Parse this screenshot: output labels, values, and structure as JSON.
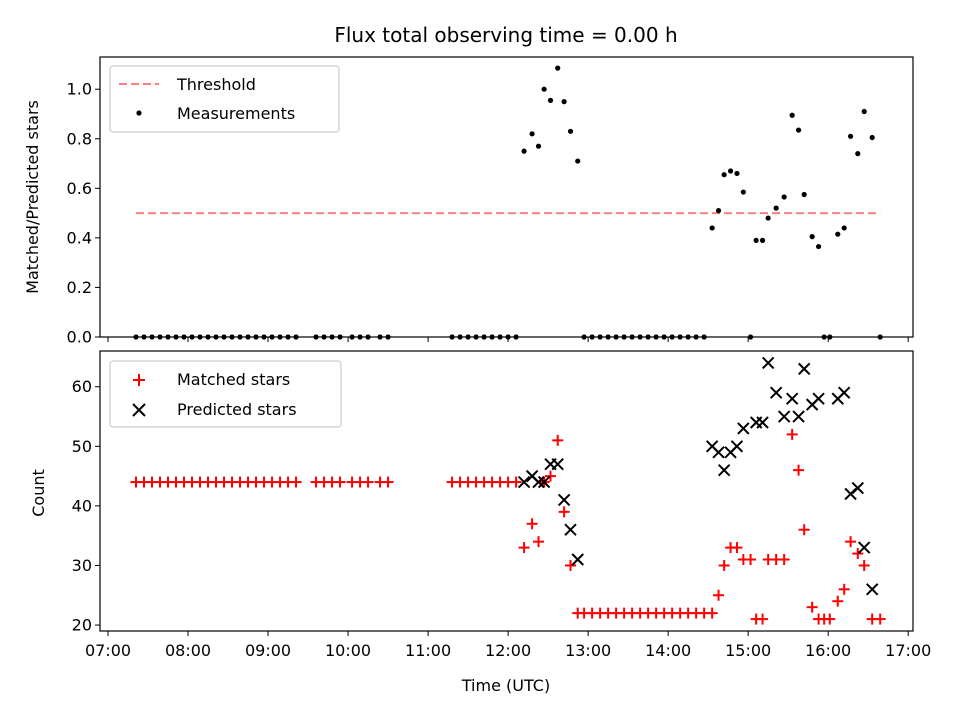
{
  "chart_data": [
    {
      "type": "scatter",
      "title": "Flux total observing time = 0.00 h",
      "xlabel": "",
      "ylabel": "Matched/Predicted stars",
      "xlim_hours": [
        6.9,
        17.06
      ],
      "ylim": [
        0,
        1.13
      ],
      "yticks": [
        0.0,
        0.2,
        0.4,
        0.6,
        0.8,
        1.0
      ],
      "ytick_labels": [
        "0.0",
        "0.2",
        "0.4",
        "0.6",
        "0.8",
        "1.0"
      ],
      "threshold": {
        "name": "Threshold",
        "value": 0.5,
        "x_range": [
          7.35,
          16.65
        ],
        "color": "#ff7f7f"
      },
      "series": [
        {
          "name": "Measurements",
          "color": "#000000",
          "points": [
            [
              7.35,
              0
            ],
            [
              7.45,
              0
            ],
            [
              7.55,
              0
            ],
            [
              7.65,
              0
            ],
            [
              7.75,
              0
            ],
            [
              7.85,
              0
            ],
            [
              7.95,
              0
            ],
            [
              8.05,
              0
            ],
            [
              8.15,
              0
            ],
            [
              8.25,
              0
            ],
            [
              8.35,
              0
            ],
            [
              8.45,
              0
            ],
            [
              8.55,
              0
            ],
            [
              8.65,
              0
            ],
            [
              8.75,
              0
            ],
            [
              8.85,
              0
            ],
            [
              8.95,
              0
            ],
            [
              9.05,
              0
            ],
            [
              9.15,
              0
            ],
            [
              9.25,
              0
            ],
            [
              9.35,
              0
            ],
            [
              9.6,
              0
            ],
            [
              9.7,
              0
            ],
            [
              9.8,
              0
            ],
            [
              9.9,
              0
            ],
            [
              10.05,
              0
            ],
            [
              10.15,
              0
            ],
            [
              10.25,
              0
            ],
            [
              10.4,
              0
            ],
            [
              10.5,
              0
            ],
            [
              11.3,
              0
            ],
            [
              11.4,
              0
            ],
            [
              11.5,
              0
            ],
            [
              11.6,
              0
            ],
            [
              11.7,
              0
            ],
            [
              11.8,
              0
            ],
            [
              11.9,
              0
            ],
            [
              12.0,
              0
            ],
            [
              12.1,
              0
            ],
            [
              12.2,
              0.75
            ],
            [
              12.3,
              0.82
            ],
            [
              12.38,
              0.77
            ],
            [
              12.45,
              1.0
            ],
            [
              12.53,
              0.955
            ],
            [
              12.62,
              1.085
            ],
            [
              12.7,
              0.95
            ],
            [
              12.78,
              0.83
            ],
            [
              12.87,
              0.71
            ],
            [
              12.95,
              0
            ],
            [
              13.05,
              0
            ],
            [
              13.15,
              0
            ],
            [
              13.25,
              0
            ],
            [
              13.35,
              0
            ],
            [
              13.45,
              0
            ],
            [
              13.55,
              0
            ],
            [
              13.65,
              0
            ],
            [
              13.75,
              0
            ],
            [
              13.85,
              0
            ],
            [
              13.95,
              0
            ],
            [
              14.05,
              0
            ],
            [
              14.15,
              0
            ],
            [
              14.25,
              0
            ],
            [
              14.35,
              0
            ],
            [
              14.45,
              0
            ],
            [
              14.55,
              0.44
            ],
            [
              14.63,
              0.51
            ],
            [
              14.7,
              0.655
            ],
            [
              14.78,
              0.67
            ],
            [
              14.86,
              0.66
            ],
            [
              14.94,
              0.585
            ],
            [
              15.03,
              0
            ],
            [
              15.1,
              0.39
            ],
            [
              15.18,
              0.39
            ],
            [
              15.25,
              0.48
            ],
            [
              15.35,
              0.52
            ],
            [
              15.45,
              0.565
            ],
            [
              15.55,
              0.895
            ],
            [
              15.63,
              0.835
            ],
            [
              15.7,
              0.575
            ],
            [
              15.8,
              0.405
            ],
            [
              15.88,
              0.365
            ],
            [
              15.95,
              0
            ],
            [
              16.02,
              0
            ],
            [
              16.12,
              0.415
            ],
            [
              16.2,
              0.44
            ],
            [
              16.28,
              0.81
            ],
            [
              16.37,
              0.74
            ],
            [
              16.45,
              0.91
            ],
            [
              16.55,
              0.805
            ],
            [
              16.65,
              0
            ]
          ]
        }
      ],
      "legend": {
        "location": "upper-left",
        "entries": [
          "Threshold",
          "Measurements"
        ]
      }
    },
    {
      "type": "scatter",
      "title": "",
      "xlabel": "Time (UTC)",
      "ylabel": "Count",
      "xlim_hours": [
        6.9,
        17.06
      ],
      "ylim": [
        19,
        66
      ],
      "yticks": [
        20,
        30,
        40,
        50,
        60
      ],
      "ytick_labels": [
        "20",
        "30",
        "40",
        "50",
        "60"
      ],
      "xticks_hours": [
        7,
        8,
        9,
        10,
        11,
        12,
        13,
        14,
        15,
        16,
        17
      ],
      "xtick_labels": [
        "07:00",
        "08:00",
        "09:00",
        "10:00",
        "11:00",
        "12:00",
        "13:00",
        "14:00",
        "15:00",
        "16:00",
        "17:00"
      ],
      "series": [
        {
          "name": "Matched stars",
          "marker": "plus",
          "color": "#ff0000",
          "points": [
            [
              7.35,
              44
            ],
            [
              7.45,
              44
            ],
            [
              7.55,
              44
            ],
            [
              7.65,
              44
            ],
            [
              7.75,
              44
            ],
            [
              7.85,
              44
            ],
            [
              7.95,
              44
            ],
            [
              8.05,
              44
            ],
            [
              8.15,
              44
            ],
            [
              8.25,
              44
            ],
            [
              8.35,
              44
            ],
            [
              8.45,
              44
            ],
            [
              8.55,
              44
            ],
            [
              8.65,
              44
            ],
            [
              8.75,
              44
            ],
            [
              8.85,
              44
            ],
            [
              8.95,
              44
            ],
            [
              9.05,
              44
            ],
            [
              9.15,
              44
            ],
            [
              9.25,
              44
            ],
            [
              9.35,
              44
            ],
            [
              9.6,
              44
            ],
            [
              9.7,
              44
            ],
            [
              9.8,
              44
            ],
            [
              9.9,
              44
            ],
            [
              10.05,
              44
            ],
            [
              10.15,
              44
            ],
            [
              10.25,
              44
            ],
            [
              10.4,
              44
            ],
            [
              10.5,
              44
            ],
            [
              11.3,
              44
            ],
            [
              11.4,
              44
            ],
            [
              11.5,
              44
            ],
            [
              11.6,
              44
            ],
            [
              11.7,
              44
            ],
            [
              11.8,
              44
            ],
            [
              11.9,
              44
            ],
            [
              12.0,
              44
            ],
            [
              12.1,
              44
            ],
            [
              12.2,
              33
            ],
            [
              12.3,
              37
            ],
            [
              12.38,
              34
            ],
            [
              12.45,
              44
            ],
            [
              12.53,
              45
            ],
            [
              12.62,
              51
            ],
            [
              12.7,
              39
            ],
            [
              12.78,
              30
            ],
            [
              12.87,
              22
            ],
            [
              12.95,
              22
            ],
            [
              13.05,
              22
            ],
            [
              13.15,
              22
            ],
            [
              13.25,
              22
            ],
            [
              13.35,
              22
            ],
            [
              13.45,
              22
            ],
            [
              13.55,
              22
            ],
            [
              13.65,
              22
            ],
            [
              13.75,
              22
            ],
            [
              13.85,
              22
            ],
            [
              13.95,
              22
            ],
            [
              14.05,
              22
            ],
            [
              14.15,
              22
            ],
            [
              14.25,
              22
            ],
            [
              14.35,
              22
            ],
            [
              14.45,
              22
            ],
            [
              14.55,
              22
            ],
            [
              14.63,
              25
            ],
            [
              14.7,
              30
            ],
            [
              14.78,
              33
            ],
            [
              14.86,
              33
            ],
            [
              14.94,
              31
            ],
            [
              15.03,
              31
            ],
            [
              15.1,
              21
            ],
            [
              15.18,
              21
            ],
            [
              15.25,
              31
            ],
            [
              15.35,
              31
            ],
            [
              15.45,
              31
            ],
            [
              15.55,
              52
            ],
            [
              15.63,
              46
            ],
            [
              15.7,
              36
            ],
            [
              15.8,
              23
            ],
            [
              15.88,
              21
            ],
            [
              15.95,
              21
            ],
            [
              16.02,
              21
            ],
            [
              16.12,
              24
            ],
            [
              16.2,
              26
            ],
            [
              16.28,
              34
            ],
            [
              16.37,
              32
            ],
            [
              16.45,
              30
            ],
            [
              16.55,
              21
            ],
            [
              16.65,
              21
            ]
          ]
        },
        {
          "name": "Predicted stars",
          "marker": "x",
          "color": "#000000",
          "points": [
            [
              12.2,
              44
            ],
            [
              12.3,
              45
            ],
            [
              12.38,
              44
            ],
            [
              12.45,
              44
            ],
            [
              12.53,
              47
            ],
            [
              12.62,
              47
            ],
            [
              12.7,
              41
            ],
            [
              12.78,
              36
            ],
            [
              12.87,
              31
            ],
            [
              14.55,
              50
            ],
            [
              14.63,
              49
            ],
            [
              14.7,
              46
            ],
            [
              14.78,
              49
            ],
            [
              14.86,
              50
            ],
            [
              14.94,
              53
            ],
            [
              15.1,
              54
            ],
            [
              15.18,
              54
            ],
            [
              15.25,
              64
            ],
            [
              15.35,
              59
            ],
            [
              15.45,
              55
            ],
            [
              15.55,
              58
            ],
            [
              15.63,
              55
            ],
            [
              15.7,
              63
            ],
            [
              15.8,
              57
            ],
            [
              15.88,
              58
            ],
            [
              16.12,
              58
            ],
            [
              16.2,
              59
            ],
            [
              16.28,
              42
            ],
            [
              16.37,
              43
            ],
            [
              16.45,
              33
            ],
            [
              16.55,
              26
            ]
          ]
        }
      ],
      "legend": {
        "location": "upper-left",
        "entries": [
          "Matched stars",
          "Predicted stars"
        ]
      }
    }
  ]
}
